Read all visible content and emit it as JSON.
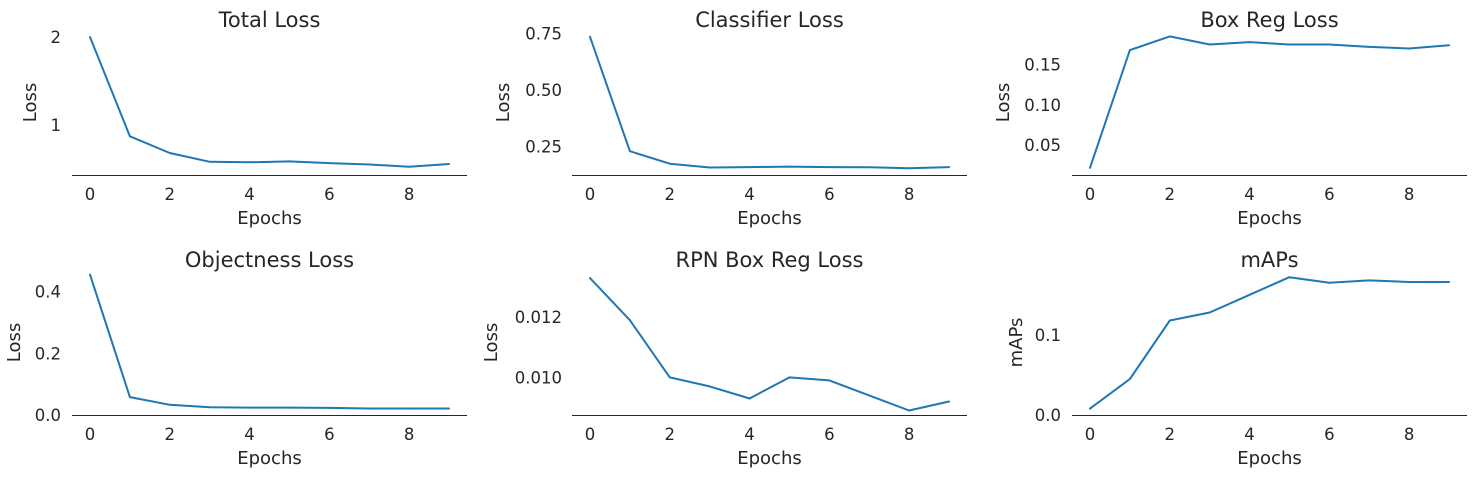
{
  "line_color": "#1f77b4",
  "chart_data": [
    {
      "type": "line",
      "title": "Total Loss",
      "xlabel": "Epochs",
      "ylabel": "Loss",
      "x": [
        0,
        1,
        2,
        3,
        4,
        5,
        6,
        7,
        8,
        9
      ],
      "series": [
        {
          "values": [
            2.0,
            0.87,
            0.68,
            0.58,
            0.575,
            0.585,
            0.565,
            0.55,
            0.525,
            0.555
          ]
        }
      ],
      "xlim": [
        -0.45,
        9.45
      ],
      "ylim": [
        0.43,
        2.08
      ],
      "xticks": [
        0,
        2,
        4,
        6,
        8
      ],
      "xtick_labels": [
        "0",
        "2",
        "4",
        "6",
        "8"
      ],
      "yticks": [
        1,
        2
      ],
      "ytick_labels": [
        "1",
        "2"
      ]
    },
    {
      "type": "line",
      "title": "Classifier Loss",
      "xlabel": "Epochs",
      "ylabel": "Loss",
      "x": [
        0,
        1,
        2,
        3,
        4,
        5,
        6,
        7,
        8,
        9
      ],
      "series": [
        {
          "values": [
            0.735,
            0.23,
            0.175,
            0.158,
            0.16,
            0.162,
            0.16,
            0.159,
            0.155,
            0.16
          ]
        }
      ],
      "xlim": [
        -0.45,
        9.45
      ],
      "ylim": [
        0.125,
        0.765
      ],
      "xticks": [
        0,
        2,
        4,
        6,
        8
      ],
      "xtick_labels": [
        "0",
        "2",
        "4",
        "6",
        "8"
      ],
      "yticks": [
        0.25,
        0.5,
        0.75
      ],
      "ytick_labels": [
        "0.25",
        "0.50",
        "0.75"
      ]
    },
    {
      "type": "line",
      "title": "Box Reg Loss",
      "xlabel": "Epochs",
      "ylabel": "Loss",
      "x": [
        0,
        1,
        2,
        3,
        4,
        5,
        6,
        7,
        8,
        9
      ],
      "series": [
        {
          "values": [
            0.022,
            0.168,
            0.185,
            0.175,
            0.178,
            0.175,
            0.175,
            0.172,
            0.17,
            0.174
          ]
        }
      ],
      "xlim": [
        -0.45,
        9.45
      ],
      "ylim": [
        0.013,
        0.193
      ],
      "xticks": [
        0,
        2,
        4,
        6,
        8
      ],
      "xtick_labels": [
        "0",
        "2",
        "4",
        "6",
        "8"
      ],
      "yticks": [
        0.05,
        0.1,
        0.15
      ],
      "ytick_labels": [
        "0.05",
        "0.10",
        "0.15"
      ]
    },
    {
      "type": "line",
      "title": "Objectness Loss",
      "xlabel": "Epochs",
      "ylabel": "Loss",
      "x": [
        0,
        1,
        2,
        3,
        4,
        5,
        6,
        7,
        8,
        9
      ],
      "series": [
        {
          "values": [
            0.455,
            0.058,
            0.033,
            0.025,
            0.024,
            0.024,
            0.023,
            0.021,
            0.021,
            0.021
          ]
        }
      ],
      "xlim": [
        -0.45,
        9.45
      ],
      "ylim": [
        0.0,
        0.47
      ],
      "xticks": [
        0,
        2,
        4,
        6,
        8
      ],
      "xtick_labels": [
        "0",
        "2",
        "4",
        "6",
        "8"
      ],
      "yticks": [
        0.0,
        0.2,
        0.4
      ],
      "ytick_labels": [
        "0.0",
        "0.2",
        "0.4"
      ]
    },
    {
      "type": "line",
      "title": "RPN Box Reg Loss",
      "xlabel": "Epochs",
      "ylabel": "Loss",
      "x": [
        0,
        1,
        2,
        3,
        4,
        5,
        6,
        7,
        8,
        9
      ],
      "series": [
        {
          "values": [
            0.0133,
            0.0119,
            0.01,
            0.0097,
            0.0093,
            0.01,
            0.0099,
            0.0094,
            0.0089,
            0.0092
          ]
        }
      ],
      "xlim": [
        -0.45,
        9.45
      ],
      "ylim": [
        0.00875,
        0.01357
      ],
      "xticks": [
        0,
        2,
        4,
        6,
        8
      ],
      "xtick_labels": [
        "0",
        "2",
        "4",
        "6",
        "8"
      ],
      "yticks": [
        0.01,
        0.012
      ],
      "ytick_labels": [
        "0.010",
        "0.012"
      ]
    },
    {
      "type": "line",
      "title": "mAPs",
      "xlabel": "Epochs",
      "ylabel": "mAPs",
      "x": [
        0,
        1,
        2,
        3,
        4,
        5,
        6,
        7,
        8,
        9
      ],
      "series": [
        {
          "values": [
            0.008,
            0.045,
            0.118,
            0.128,
            0.15,
            0.172,
            0.165,
            0.168,
            0.166,
            0.166
          ]
        }
      ],
      "xlim": [
        -0.45,
        9.45
      ],
      "ylim": [
        0.0,
        0.181
      ],
      "xticks": [
        0,
        2,
        4,
        6,
        8
      ],
      "xtick_labels": [
        "0",
        "2",
        "4",
        "6",
        "8"
      ],
      "yticks": [
        0.0,
        0.1
      ],
      "ytick_labels": [
        "0.0",
        "0.1"
      ]
    }
  ]
}
